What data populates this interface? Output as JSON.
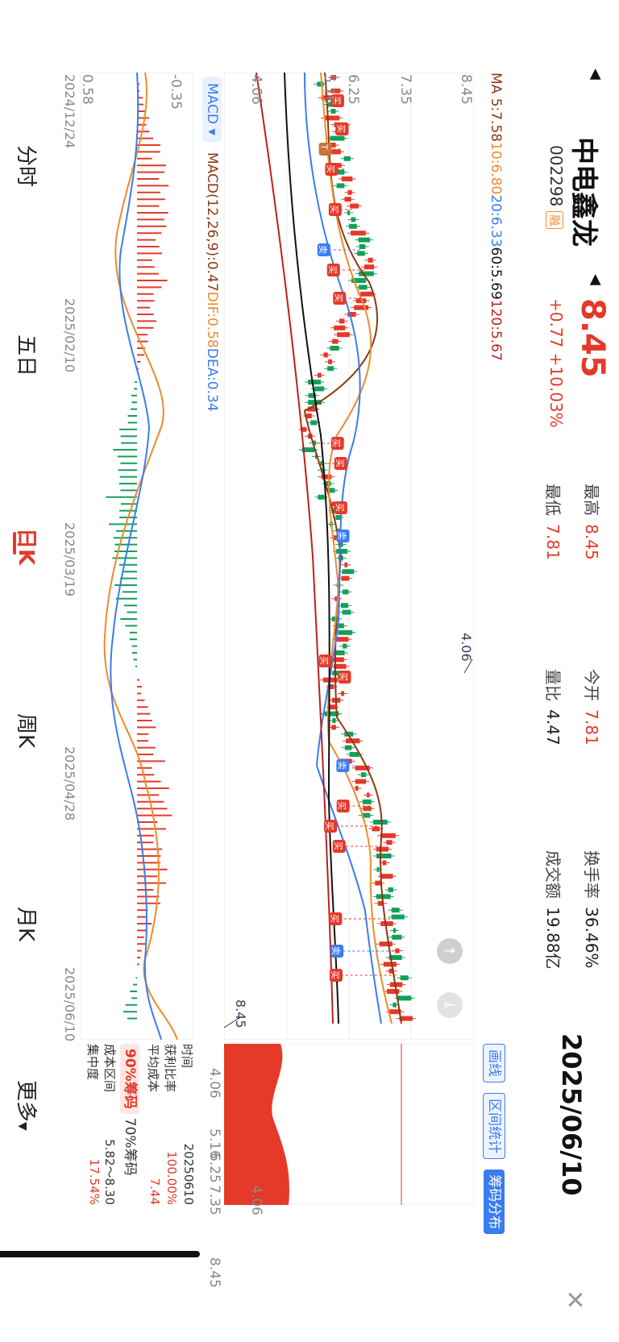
{
  "stock": {
    "name": "中电鑫龙",
    "code": "002298",
    "tag": "融",
    "price": "8.45",
    "change": "+0.77 +10.03%"
  },
  "stats": {
    "high_label": "最高",
    "high": "8.45",
    "low_label": "最低",
    "low": "7.81",
    "open_label": "今开",
    "open": "7.81",
    "vol_ratio_label": "量比",
    "vol_ratio": "4.47",
    "turnover_label": "换手率",
    "turnover": "36.46%",
    "amount_label": "成交额",
    "amount": "19.88亿"
  },
  "header": {
    "date": "2025/06/10",
    "close_icon": "close-icon"
  },
  "ma": {
    "ma5": "MA 5:7.58",
    "ma10": "10:6.80",
    "ma20": "20:6.33",
    "ma60": "60:5.69",
    "ma120": "120:5.67"
  },
  "price_axis": [
    "8.45",
    "7.35",
    "6.25",
    "5.16",
    "4.06"
  ],
  "annotations": {
    "high": "8.45",
    "low": "4.06"
  },
  "macd": {
    "tab": "MACD",
    "params": "MACD(12,26,9):0.47",
    "dif": "DIF:0.58",
    "dea": "DEA:0.34",
    "axis_top": "0.58",
    "axis_bottom": "-0.35"
  },
  "dates": [
    "2024/12/24",
    "2025/02/10",
    "2025/03/19",
    "2025/04/28",
    "2025/06/10"
  ],
  "chips": {
    "buttons": [
      "画线",
      "区间统计",
      "筹码分布"
    ],
    "time_label": "时间",
    "time": "20250610",
    "profit_label": "获利比率",
    "profit": "100.00%",
    "cost_label": "平均成本",
    "cost": "7.44",
    "tab90": "90%筹码",
    "tab70": "70%筹码",
    "range_label": "成本区间",
    "range": "5.82～8.30",
    "conc_label": "集中度",
    "conc": "17.54%",
    "axis": [
      "8.45",
      "7.35",
      "6.25",
      "5.16",
      "4.06"
    ]
  },
  "tabs": [
    "分时",
    "五日",
    "日K",
    "周K",
    "月K",
    "更多"
  ],
  "markers": {
    "buy": "买",
    "sell": "卖",
    "t": "T"
  },
  "colors": {
    "up": "#e5392a",
    "down": "#13a05a",
    "ma5": "#8a3a12",
    "ma10": "#f08a2c",
    "ma20": "#3b7cf0",
    "ma60": "#111111",
    "ma120": "#c0201a"
  }
}
